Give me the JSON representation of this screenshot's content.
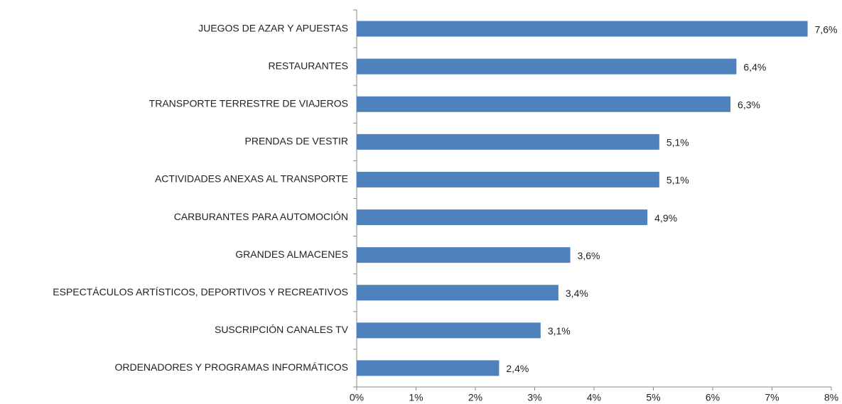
{
  "chart_data": {
    "type": "bar",
    "orientation": "horizontal",
    "categories": [
      "JUEGOS DE AZAR Y APUESTAS",
      "RESTAURANTES",
      "TRANSPORTE TERRESTRE DE VIAJEROS",
      "PRENDAS DE VESTIR",
      "ACTIVIDADES ANEXAS AL TRANSPORTE",
      "CARBURANTES PARA AUTOMOCIÓN",
      "GRANDES ALMACENES",
      "ESPECTÁCULOS ARTÍSTICOS, DEPORTIVOS Y RECREATIVOS",
      "SUSCRIPCIÓN CANALES TV",
      "ORDENADORES Y PROGRAMAS INFORMÁTICOS"
    ],
    "values": [
      7.6,
      6.4,
      6.3,
      5.1,
      5.1,
      4.9,
      3.6,
      3.4,
      3.1,
      2.4
    ],
    "value_labels": [
      "7,6%",
      "6,4%",
      "6,3%",
      "5,1%",
      "5,1%",
      "4,9%",
      "3,6%",
      "3,4%",
      "3,1%",
      "2,4%"
    ],
    "color": "#4f81bd",
    "xlim": [
      0,
      8
    ],
    "xticks": [
      {
        "value": 0,
        "label": "0%"
      },
      {
        "value": 1,
        "label": "1%"
      },
      {
        "value": 2,
        "label": "2%"
      },
      {
        "value": 3,
        "label": "3%"
      },
      {
        "value": 4,
        "label": "4%"
      },
      {
        "value": 5,
        "label": "5%"
      },
      {
        "value": 6,
        "label": "6%"
      },
      {
        "value": 7,
        "label": "7%"
      },
      {
        "value": 8,
        "label": "8%"
      }
    ],
    "grid": false
  }
}
